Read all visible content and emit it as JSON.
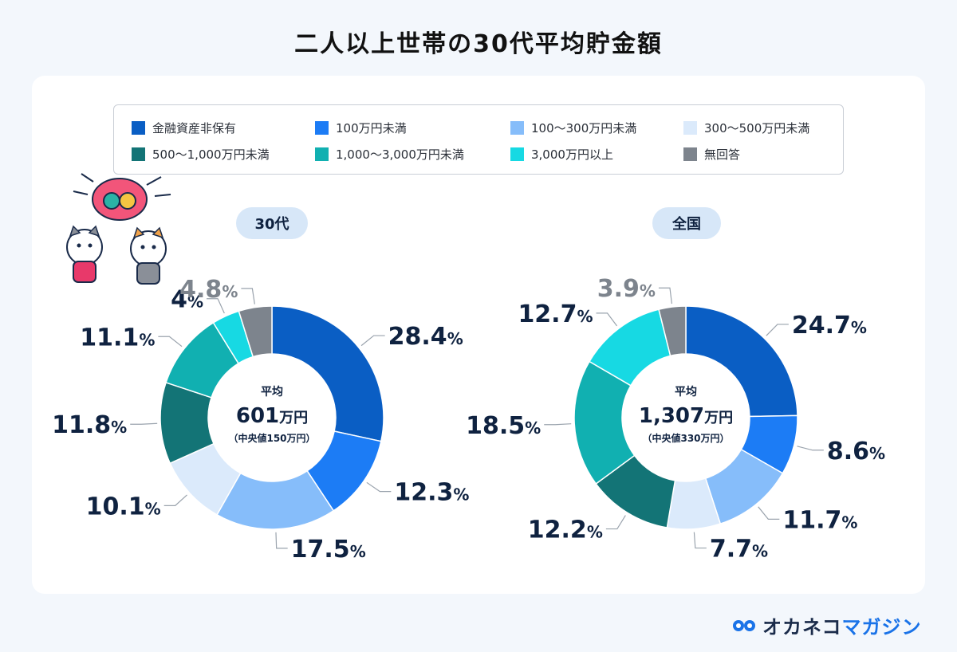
{
  "title": "二人以上世帯の30代平均貯金額",
  "legend": [
    {
      "label": "金融資産非保有",
      "color": "#0a5ec4"
    },
    {
      "label": "100万円未満",
      "color": "#1c7cf5"
    },
    {
      "label": "100〜300万円未満",
      "color": "#86bdfa"
    },
    {
      "label": "300〜500万円未満",
      "color": "#dbeafb"
    },
    {
      "label": "500〜1,000万円未満",
      "color": "#137476"
    },
    {
      "label": "1,000〜3,000万円未満",
      "color": "#11b0b1"
    },
    {
      "label": "3,000万円以上",
      "color": "#17d9e3"
    },
    {
      "label": "無回答",
      "color": "#7d848d"
    }
  ],
  "chart_data": [
    {
      "type": "pie",
      "title": "30代",
      "categories": [
        "金融資産非保有",
        "100万円未満",
        "100〜300万円未満",
        "300〜500万円未満",
        "500〜1,000万円未満",
        "1,000〜3,000万円未満",
        "3,000万円以上",
        "無回答"
      ],
      "values": [
        28.4,
        12.3,
        17.5,
        10.1,
        11.8,
        11.1,
        4,
        4.8
      ],
      "labels": [
        "28.4",
        "12.3",
        "17.5",
        "10.1",
        "11.8",
        "11.1",
        "4",
        "4.8"
      ],
      "unit": "%",
      "center": {
        "line1": "平均",
        "value": "601",
        "unit": "万円",
        "line3": "（中央値150万円）"
      }
    },
    {
      "type": "pie",
      "title": "全国",
      "categories": [
        "金融資産非保有",
        "100万円未満",
        "100〜300万円未満",
        "300〜500万円未満",
        "500〜1,000万円未満",
        "1,000〜3,000万円未満",
        "3,000万円以上",
        "無回答"
      ],
      "values": [
        24.7,
        8.6,
        11.7,
        7.7,
        12.2,
        18.5,
        12.7,
        3.9
      ],
      "labels": [
        "24.7",
        "8.6",
        "11.7",
        "7.7",
        "12.2",
        "18.5",
        "12.7",
        "3.9"
      ],
      "unit": "%",
      "center": {
        "line1": "平均",
        "value": "1,307",
        "unit": "万円",
        "line3": "（中央値330万円）"
      }
    }
  ],
  "brand": {
    "part1": "オカネコ",
    "part2": "マガジン",
    "accent": "#1a73e8"
  }
}
